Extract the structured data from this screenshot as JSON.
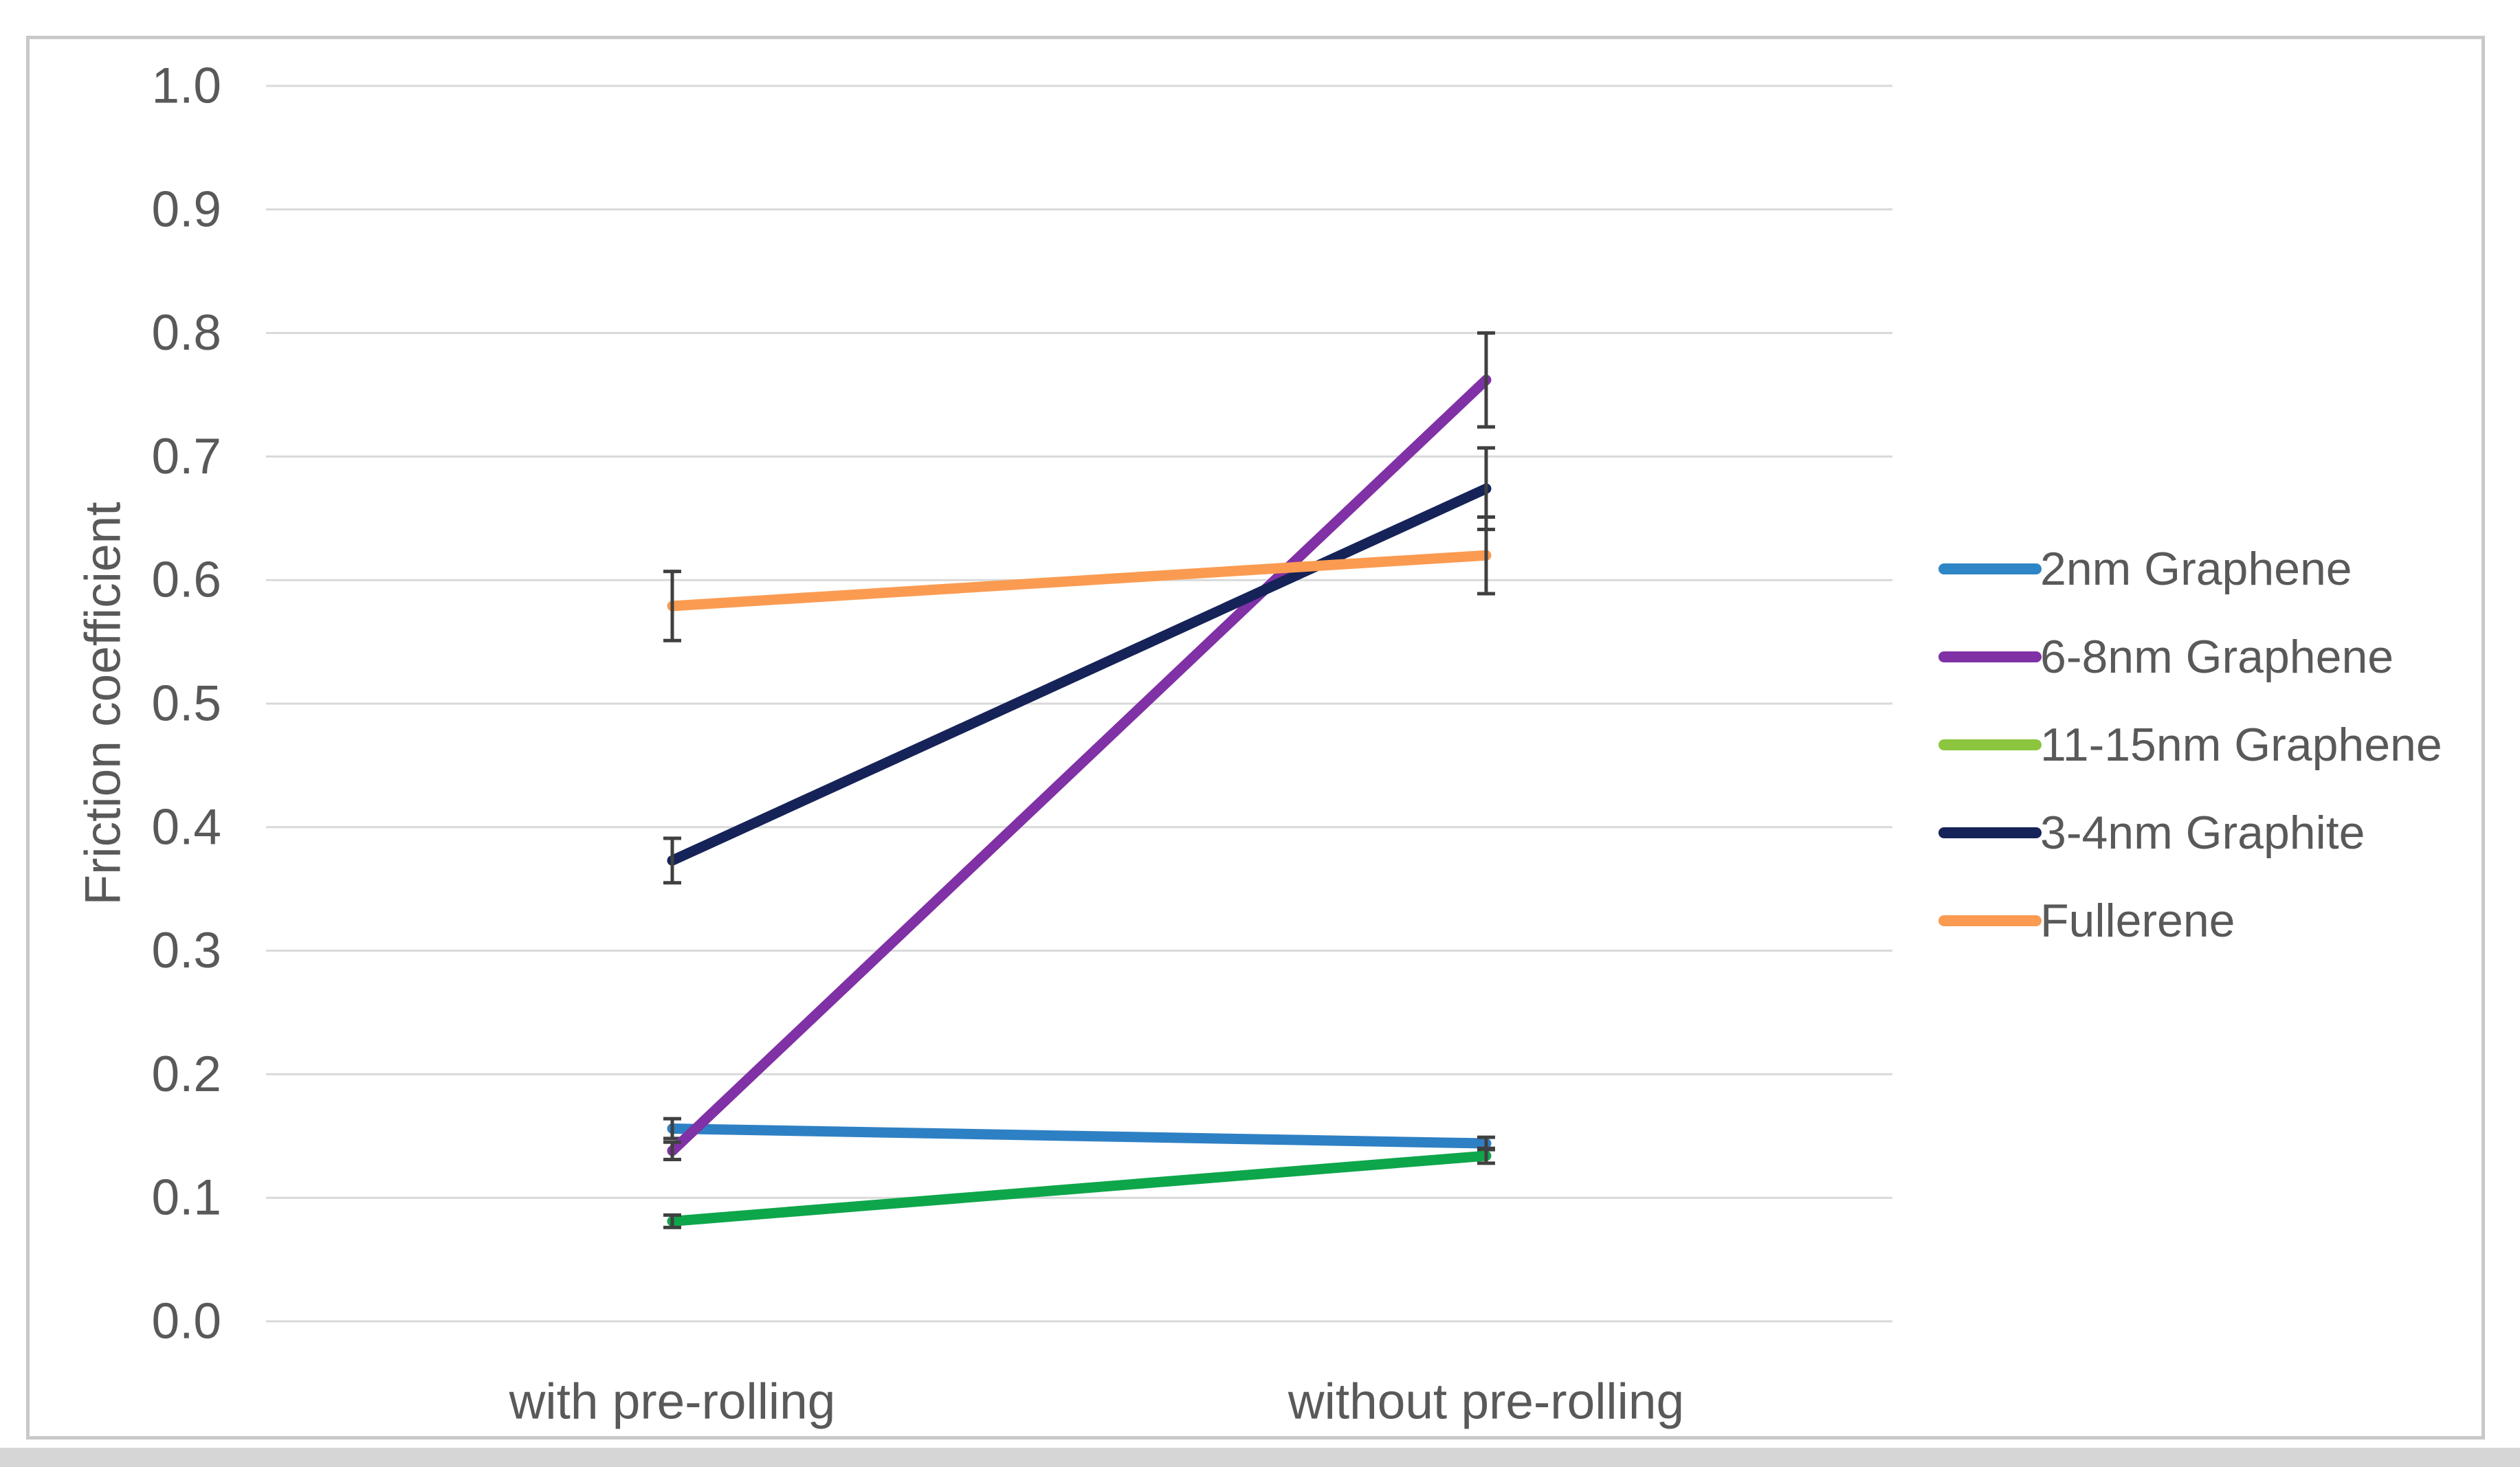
{
  "chart_data": {
    "type": "line",
    "categories": [
      "with pre-rolling",
      "without pre-rolling"
    ],
    "series": [
      {
        "name": "2nm Graphene",
        "values": [
          0.156,
          0.144
        ],
        "errors": [
          0.008,
          0.005
        ],
        "color": "#2E80C4",
        "legend_color": "#2E86C6"
      },
      {
        "name": "6-8nm Graphene",
        "values": [
          0.138,
          0.762
        ],
        "errors": [
          0.007,
          0.038
        ],
        "color": "#8031A5",
        "legend_color": "#8031A5"
      },
      {
        "name": "11-15nm Graphene",
        "values": [
          0.081,
          0.134
        ],
        "errors": [
          0.005,
          0.006
        ],
        "color": "#0EA64B",
        "legend_color": "#8CC63F"
      },
      {
        "name": "3-4nm Graphite",
        "values": [
          0.373,
          0.674
        ],
        "errors": [
          0.018,
          0.033
        ],
        "color": "#152358",
        "legend_color": "#152358"
      },
      {
        "name": "Fullerene",
        "values": [
          0.579,
          0.62
        ],
        "errors": [
          0.028,
          0.031
        ],
        "color": "#FB9B51",
        "legend_color": "#FB9B51"
      }
    ],
    "title": "",
    "xlabel": "",
    "ylabel": "Friction coefficient",
    "ylim": [
      0.0,
      1.0
    ],
    "ytick_step": 0.1,
    "y_tick_labels": [
      "1.0",
      "0.9",
      "0.8",
      "0.7",
      "0.6",
      "0.5",
      "0.4",
      "0.3",
      "0.2",
      "0.1",
      "0.0"
    ],
    "grid": true,
    "error_bars": true,
    "legend_position": "right"
  },
  "style": {
    "grid_color": "#D9D9D9",
    "error_bar_color": "#404040",
    "text_color": "#595959",
    "frame_border_color": "#C9C9C9",
    "bottom_strip_color": "#D6D6D6"
  }
}
